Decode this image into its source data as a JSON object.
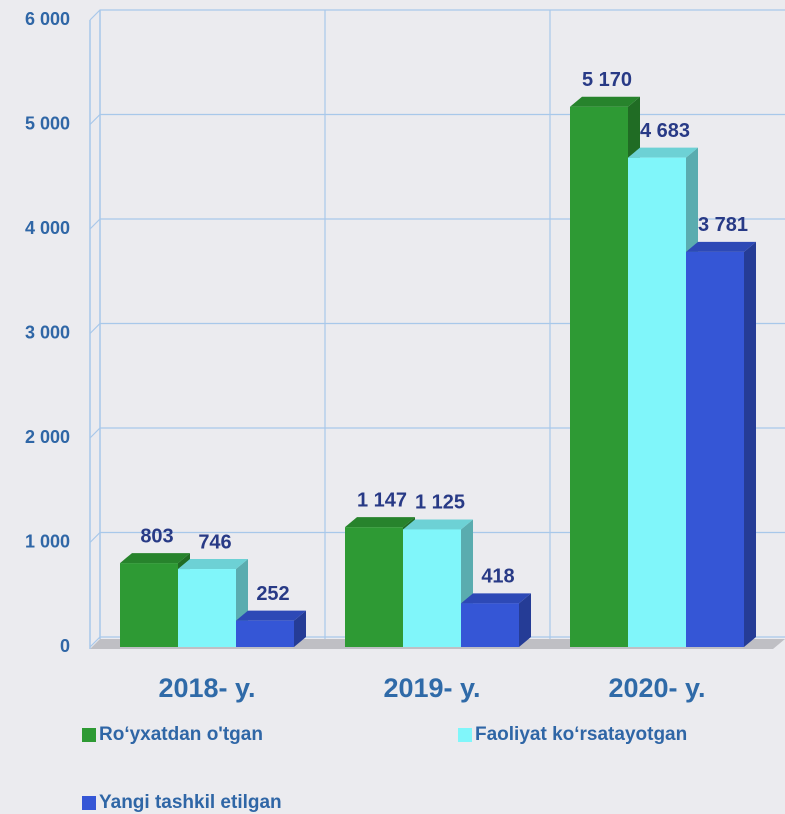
{
  "chart_data": {
    "type": "bar3d",
    "categories": [
      "2018- y.",
      "2019- y.",
      "2020- y."
    ],
    "series": [
      {
        "name": "Ro‘yxatdan o'tgan",
        "color": "#2e9a34",
        "values": [
          803,
          1147,
          5170
        ],
        "value_labels": [
          "803",
          "1 147",
          "5 170"
        ]
      },
      {
        "name": "Faoliyat ko‘rsatayotgan",
        "color": "#80f6fa",
        "values": [
          746,
          1125,
          4683
        ],
        "value_labels": [
          "746",
          "1 125",
          "4 683"
        ]
      },
      {
        "name": "Yangi tashkil etilgan",
        "color": "#3556d6",
        "values": [
          252,
          418,
          3781
        ],
        "value_labels": [
          "252",
          "418",
          "3 781"
        ]
      }
    ],
    "ylim": [
      0,
      6000
    ],
    "yticks": [
      0,
      {
        "value": 1000,
        "label": "1 000"
      },
      {
        "value": 2000,
        "label": "2 000"
      },
      {
        "value": 3000,
        "label": "3 000"
      },
      {
        "value": 4000,
        "label": "4 000"
      },
      {
        "value": 5000,
        "label": "5 000"
      },
      {
        "value": 6000,
        "label": "6 000"
      }
    ],
    "grid": true
  }
}
